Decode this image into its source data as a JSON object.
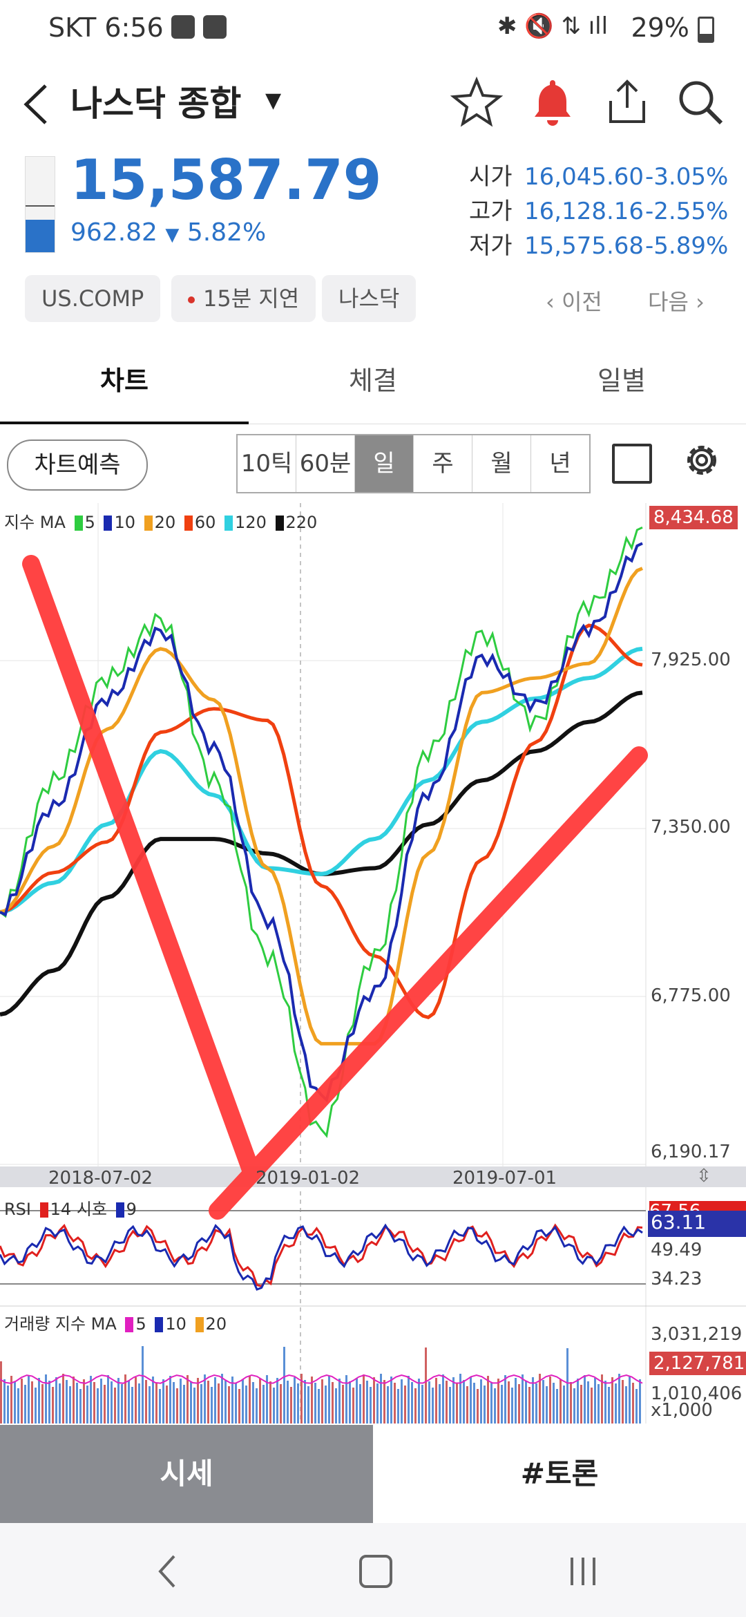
{
  "status_bar": {
    "carrier_time": "SKT 6:56",
    "battery": "29%",
    "icons": [
      "gallery-icon",
      "pay-icon",
      "bluetooth-icon",
      "mute-icon",
      "lte-icon",
      "signal-icon",
      "battery-icon"
    ]
  },
  "header": {
    "title": "나스닥 종합",
    "icons": [
      "back-icon",
      "dropdown-caret-icon",
      "star-icon",
      "bell-icon",
      "share-icon",
      "search-icon"
    ],
    "accent_bell": "#e53935"
  },
  "quote": {
    "price": "15,587.79",
    "change": "962.82",
    "change_pct": "5.82%",
    "open_label": "시가",
    "open_value": "16,045.60",
    "open_pct": "-3.05%",
    "high_label": "고가",
    "high_value": "16,128.16",
    "high_pct": "-2.55%",
    "low_label": "저가",
    "low_value": "15,575.68",
    "low_pct": "-5.89%",
    "down_color": "#2a72c8"
  },
  "chips": [
    "US.COMP",
    "15분 지연",
    "나스닥"
  ],
  "nav": {
    "prev": "이전",
    "next": "다음"
  },
  "tabs": [
    "차트",
    "체결",
    "일별"
  ],
  "toolbar": {
    "predict": "차트예측",
    "periods": [
      "10틱",
      "60분",
      "일",
      "주",
      "월",
      "년"
    ],
    "selected_period": "일"
  },
  "chart_data": [
    {
      "type": "line",
      "legend_label": "지수 MA",
      "ma_periods": [
        "5",
        "10",
        "20",
        "60",
        "120",
        "220"
      ],
      "ma_colors": [
        "#2ecc40",
        "#1a2ab0",
        "#f0a020",
        "#f04010",
        "#30d0e0",
        "#111111"
      ],
      "y_ticks": [
        "8,434.68",
        "7,925.00",
        "7,350.00",
        "6,775.00",
        "6,190.17"
      ],
      "current_label": "8,434.68",
      "x_ticks": [
        "2018-07-02",
        "2019-01-02",
        "2019-07-01"
      ],
      "series_approx": {
        "ma120": [
          7050,
          7150,
          7350,
          7600,
          7450,
          7200,
          7180,
          7300,
          7500,
          7700,
          7780,
          7850,
          7950
        ],
        "ma220": [
          6700,
          6850,
          7100,
          7300,
          7300,
          7250,
          7180,
          7200,
          7350,
          7500,
          7600,
          7700,
          7800
        ],
        "price": [
          7050,
          7500,
          7850,
          8050,
          7500,
          6900,
          6300,
          6900,
          7600,
          8000,
          7700,
          8100,
          8350
        ]
      }
    },
    {
      "type": "line",
      "legend_label": "RSI",
      "params": [
        "14",
        "시호",
        "9"
      ],
      "y_ticks": [
        "67.56",
        "63.11",
        "49.49",
        "34.23"
      ],
      "current_label": "63.11"
    },
    {
      "type": "bar",
      "legend_label": "거래량 지수 MA",
      "ma_periods": [
        "5",
        "10",
        "20"
      ],
      "ma_colors": [
        "#e020c0",
        "#1a2ab0",
        "#f0a020"
      ],
      "y_ticks": [
        "3,031,219",
        "2,127,781",
        "1,010,406"
      ],
      "unit": "x1,000",
      "current_label": "2,127,781"
    }
  ],
  "bottom_tabs": [
    "시세",
    "#토론"
  ],
  "system_nav": [
    "back-icon",
    "home-icon",
    "recents-icon"
  ]
}
